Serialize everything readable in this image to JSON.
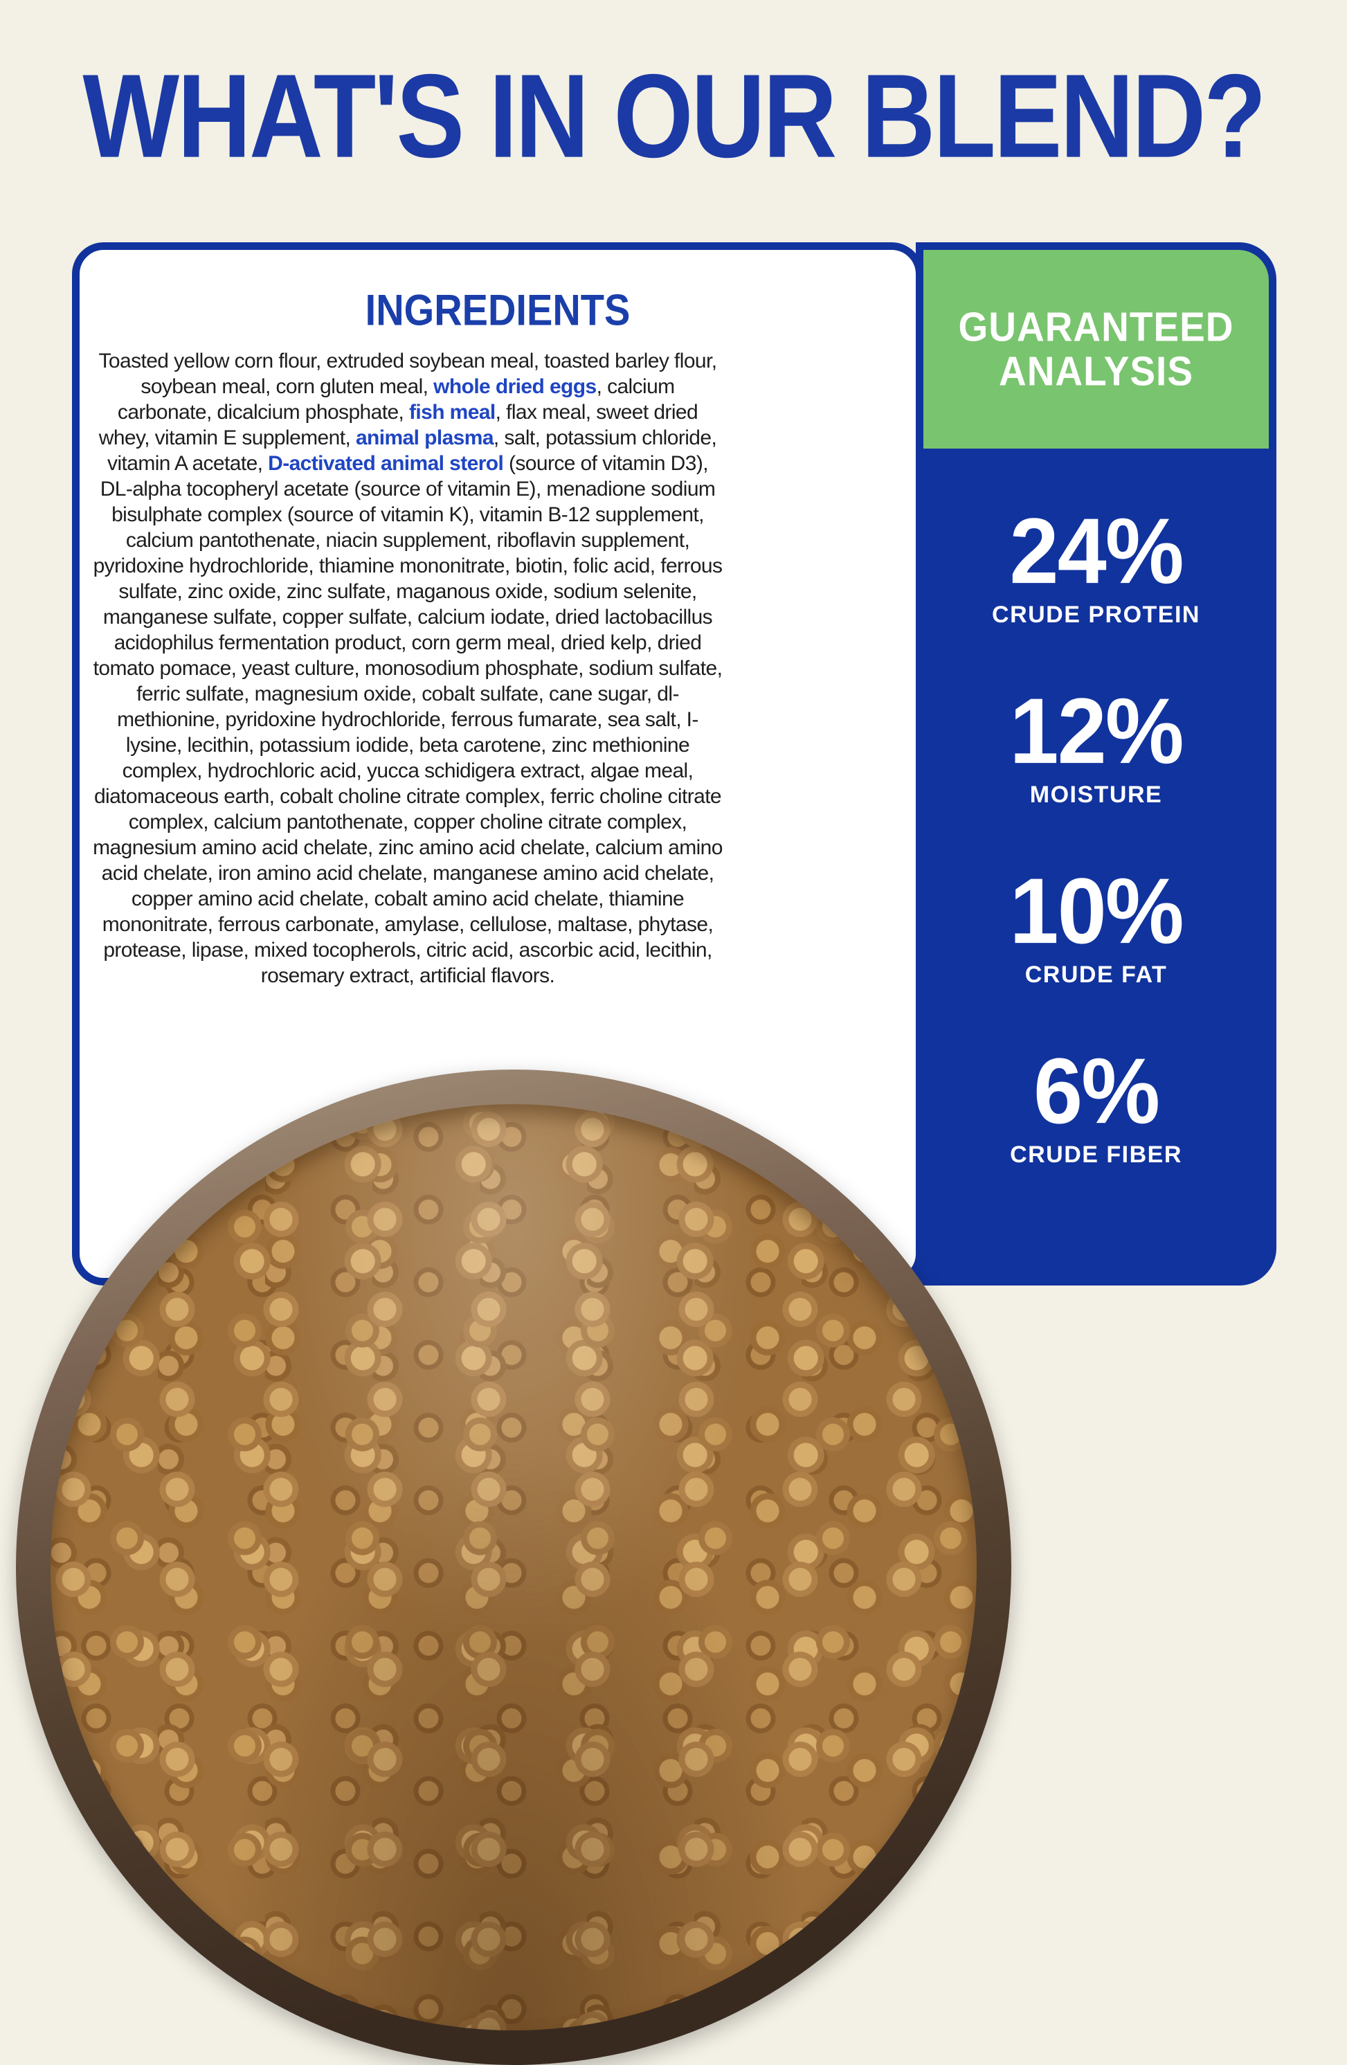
{
  "header": {
    "title": "WHAT'S IN OUR BLEND?"
  },
  "ingredients": {
    "heading": "INGREDIENTS",
    "segments": [
      {
        "text": "Toasted yellow corn flour, extruded soybean meal, toasted barley flour, soybean meal, corn gluten meal, ",
        "highlight": false
      },
      {
        "text": "whole dried eggs",
        "highlight": true
      },
      {
        "text": ", calcium carbonate, dicalcium phosphate, ",
        "highlight": false
      },
      {
        "text": "fish meal",
        "highlight": true
      },
      {
        "text": ", flax meal, sweet dried whey, vitamin E supplement, ",
        "highlight": false
      },
      {
        "text": "animal plasma",
        "highlight": true
      },
      {
        "text": ", salt, potassium chloride, vitamin A acetate, ",
        "highlight": false
      },
      {
        "text": "D-activated animal sterol",
        "highlight": true
      },
      {
        "text": " (source of vitamin D3), DL-alpha tocopheryl acetate (source of vitamin E), menadione sodium bisulphate complex (source of vitamin K), vitamin B-12 supplement, calcium pantothenate, niacin supplement, riboflavin supplement, pyridoxine hydrochloride, thiamine mononitrate, biotin, folic acid, ferrous sulfate, zinc oxide, zinc sulfate, maganous oxide, sodium selenite, manganese sulfate, copper sulfate, calcium iodate, dried lactobacillus acidophilus fermentation product, corn germ meal, dried kelp, dried tomato pomace, yeast culture, monosodium phosphate, sodium sulfate, ferric sulfate, magnesium oxide, cobalt sulfate, cane sugar, dl-methionine, pyridoxine hydrochloride, ferrous fumarate, sea salt, I-lysine, lecithin, potassium iodide, beta carotene, zinc methionine complex, hydrochloric acid, yucca schidigera extract, algae meal, diatomaceous earth, cobalt choline citrate complex, ferric choline citrate complex, calcium pantothenate, copper choline citrate complex, magnesium amino acid chelate, zinc amino acid chelate, calcium amino acid chelate, iron amino acid chelate, manganese amino acid chelate, copper amino acid chelate, cobalt amino acid chelate, thiamine mononitrate, ferrous carbonate, amylase, cellulose, maltase, phytase, protease, lipase, mixed tocopherols, citric acid, ascorbic acid, lecithin, rosemary extract, artificial flavors.",
        "highlight": false
      }
    ]
  },
  "analysis": {
    "heading_line1": "GUARANTEED",
    "heading_line2": "ANALYSIS",
    "stats": [
      {
        "value": "24%",
        "label": "CRUDE PROTEIN"
      },
      {
        "value": "12%",
        "label": "MOISTURE"
      },
      {
        "value": "10%",
        "label": "CRUDE FAT"
      },
      {
        "value": "6%",
        "label": "CRUDE FIBER"
      }
    ]
  },
  "photo": {
    "description": "Metal bowl filled with tan dry kibble pieces"
  },
  "colors": {
    "background_cream": "#f3f0e5",
    "brand_blue": "#11339e",
    "title_blue": "#1b3aa5",
    "highlight_blue": "#1f45c2",
    "accent_green": "#79c46e",
    "text_black": "#1e1e20",
    "kibble_tan": "#b5854a"
  }
}
